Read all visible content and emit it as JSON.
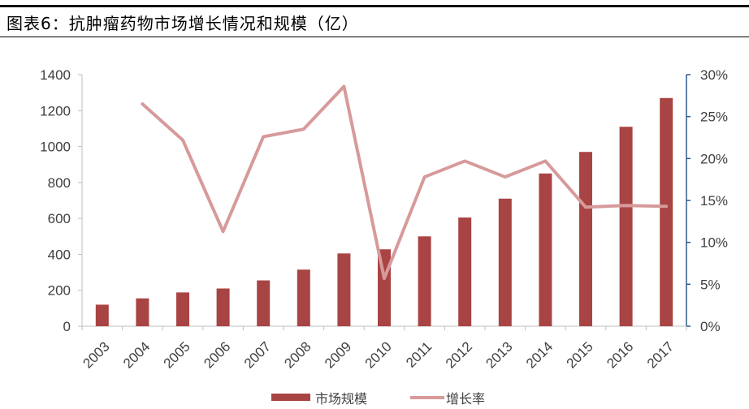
{
  "header": {
    "title": "图表6：抗肿瘤药物市场增长情况和规模（亿）"
  },
  "colors": {
    "bar": "#A94444",
    "line": "#D79A9A",
    "right_axis": "#2F5A8C",
    "left_axis": "#BFBFBF"
  },
  "chart_data": {
    "type": "bar",
    "categories": [
      "2003",
      "2004",
      "2005",
      "2006",
      "2007",
      "2008",
      "2009",
      "2010",
      "2011",
      "2012",
      "2013",
      "2014",
      "2015",
      "2016",
      "2017"
    ],
    "series": [
      {
        "name": "市场规模",
        "type": "bar",
        "axis": "left",
        "values": [
          120,
          155,
          188,
          210,
          255,
          315,
          405,
          428,
          500,
          605,
          710,
          850,
          970,
          1110,
          1270
        ]
      },
      {
        "name": "增长率",
        "type": "line",
        "axis": "right",
        "values": [
          null,
          26.5,
          22.2,
          11.3,
          22.6,
          23.5,
          28.6,
          5.7,
          17.8,
          19.7,
          17.8,
          19.7,
          14.2,
          14.4,
          14.3
        ]
      }
    ],
    "y_left": {
      "ylim": [
        0,
        1400
      ],
      "ticks": [
        "0",
        "200",
        "400",
        "600",
        "800",
        "1000",
        "1200",
        "1400"
      ]
    },
    "y_right": {
      "ylim": [
        0,
        30
      ],
      "ticks": [
        "0%",
        "5%",
        "10%",
        "15%",
        "20%",
        "25%",
        "30%"
      ]
    },
    "legend": {
      "position": "bottom",
      "entries": [
        "市场规模",
        "增长率"
      ]
    },
    "grid": false
  }
}
